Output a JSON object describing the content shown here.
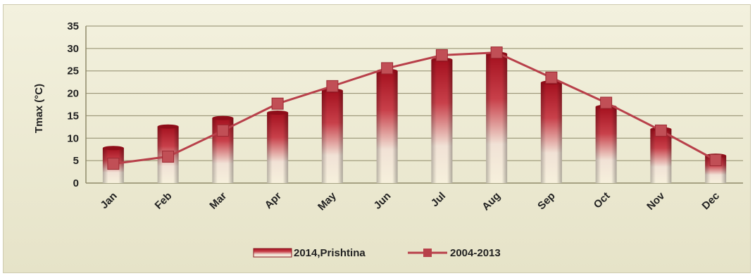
{
  "chart_data": {
    "type": "bar",
    "categories": [
      "Jan",
      "Feb",
      "Mar",
      "Apr",
      "May",
      "Jun",
      "Jul",
      "Aug",
      "Sep",
      "Oct",
      "Nov",
      "Dec"
    ],
    "series": [
      {
        "name": "2014,Prishtina",
        "type": "bar",
        "values": [
          7.8,
          12.6,
          14.5,
          15.7,
          20.6,
          25.0,
          27.5,
          28.8,
          22.4,
          17.0,
          12.0,
          6.1
        ],
        "color": "#b01e2a"
      },
      {
        "name": "2004-2013",
        "type": "line",
        "values": [
          4.3,
          5.9,
          11.7,
          17.7,
          21.6,
          25.6,
          28.5,
          29.1,
          23.5,
          17.9,
          11.7,
          5.1
        ],
        "color": "#b8404a"
      }
    ],
    "ylabel": "Tmax (°C)",
    "xlabel": "",
    "ylim": [
      0,
      35
    ],
    "yticks": [
      0,
      5,
      10,
      15,
      20,
      25,
      30,
      35
    ],
    "grid": true,
    "legend_position": "bottom"
  }
}
